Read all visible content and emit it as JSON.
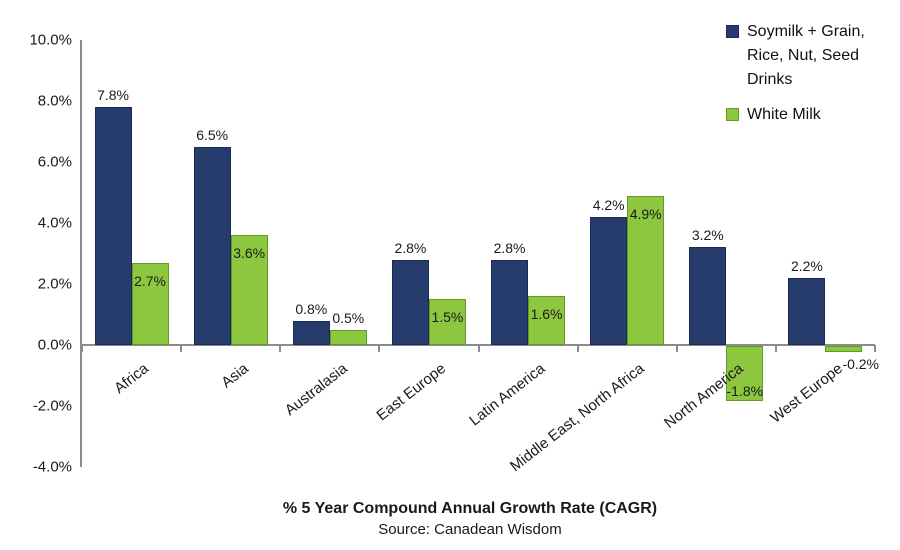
{
  "chart_data": {
    "type": "bar",
    "title": "% 5 Year Compound Annual Growth Rate (CAGR)",
    "source_note": "Source: Canadean Wisdom",
    "background": "#FFFFFF",
    "grid": false,
    "legend_position": "top-right",
    "axis_color": "#8C8C8C",
    "text_color": "#1F1F1F",
    "categories": [
      "Africa",
      "Asia",
      "Australasia",
      "East Europe",
      "Latin America",
      "Middle East, North Africa",
      "North America",
      "West Europe"
    ],
    "y_axis": {
      "ticks": [
        "10.0%",
        "8.0%",
        "6.0%",
        "4.0%",
        "2.0%",
        "0.0%",
        "-2.0%",
        "-4.0%"
      ],
      "tick_values": [
        10,
        8,
        6,
        4,
        2,
        0,
        -2,
        -4
      ],
      "min": -4,
      "max": 10
    },
    "series": [
      {
        "id": "soymilk",
        "name": "Soymilk + Grain, Rice, Nut, Seed Drinks",
        "legend_label_lines": [
          "Soymilk + Grain,",
          "Rice, Nut, Seed",
          "Drinks"
        ],
        "color": "#253C6D",
        "border_color": "#1A2A52",
        "values": [
          7.8,
          6.5,
          0.8,
          2.8,
          2.8,
          4.2,
          3.2,
          2.2
        ],
        "data_labels": [
          "7.8%",
          "6.5%",
          "0.8%",
          "2.8%",
          "2.8%",
          "4.2%",
          "3.2%",
          "2.2%"
        ],
        "label_pos": [
          "above",
          "above",
          "above",
          "above",
          "above",
          "above",
          "above",
          "above"
        ]
      },
      {
        "id": "white-milk",
        "name": "White Milk",
        "legend_label_lines": [
          "White Milk"
        ],
        "color": "#8DC63F",
        "border_color": "#609B27",
        "values": [
          2.7,
          3.6,
          0.5,
          1.5,
          1.6,
          4.9,
          -1.8,
          -0.2
        ],
        "data_labels": [
          "2.7%",
          "3.6%",
          "0.5%",
          "1.5%",
          "1.6%",
          "4.9%",
          "-1.8%",
          "-0.2%"
        ],
        "label_pos": [
          "inside",
          "inside",
          "above",
          "inside",
          "inside",
          "inside",
          "inside-bottom",
          "right"
        ]
      }
    ]
  }
}
